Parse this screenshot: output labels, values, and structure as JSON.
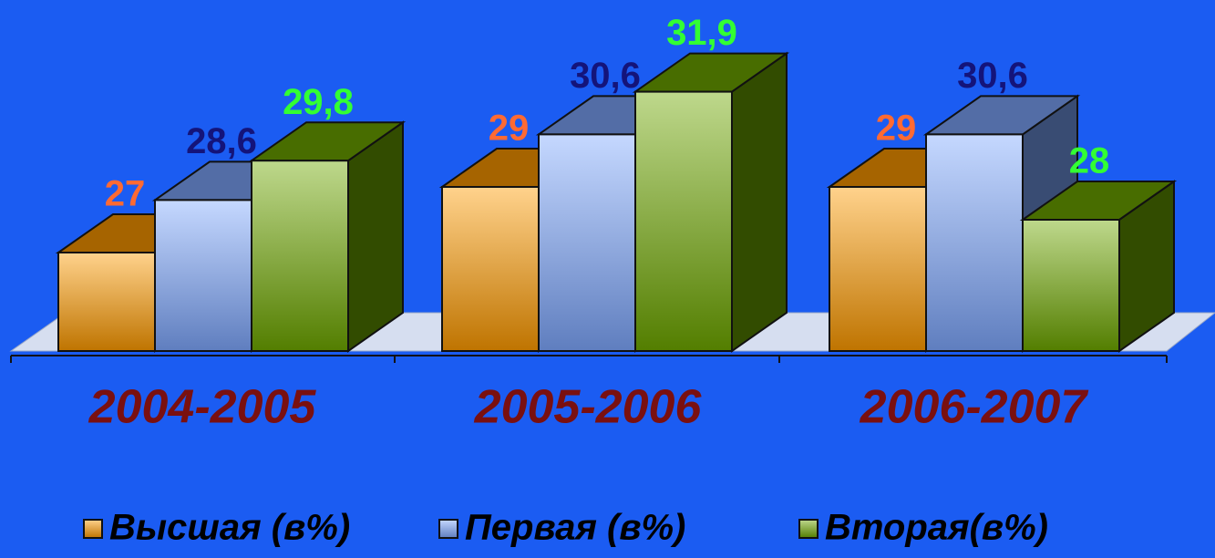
{
  "chart_data": {
    "type": "bar3d",
    "categories": [
      "2004-2005",
      "2005-2006",
      "2006-2007"
    ],
    "series": [
      {
        "name": "Высшая (в%)",
        "color": "#ff9a00",
        "label_color": "#ff6a33",
        "values": [
          27,
          29,
          29
        ],
        "value_labels": [
          "27",
          "29",
          "29"
        ]
      },
      {
        "name": "Первая (в%)",
        "color": "#7fa8ff",
        "label_color": "#14147a",
        "values": [
          28.6,
          30.6,
          30.6
        ],
        "value_labels": [
          "28,6",
          "30,6",
          "30,6"
        ]
      },
      {
        "name": "Вторая(в%)",
        "color": "#6fa800",
        "label_color": "#33ff33",
        "values": [
          29.8,
          31.9,
          28
        ],
        "value_labels": [
          "29,8",
          "31,9",
          "28"
        ]
      }
    ],
    "ylim": [
      24,
      34
    ],
    "legend": "bottom"
  }
}
